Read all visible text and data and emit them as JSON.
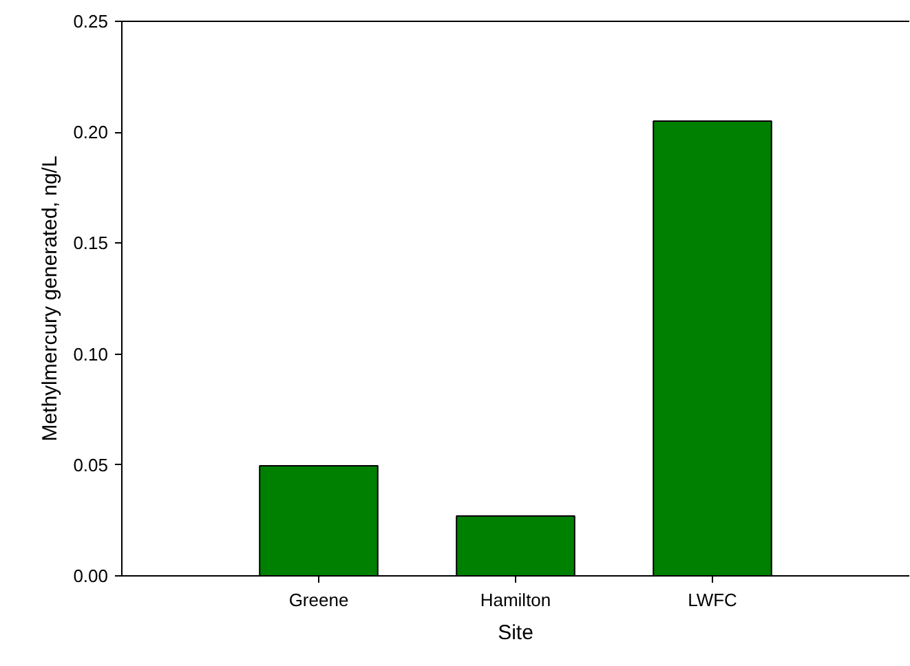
{
  "chart_data": {
    "type": "bar",
    "xlabel": "Site",
    "ylabel": "Methylmercury generated, ng/L",
    "categories": [
      "Greene",
      "Hamilton",
      "LWFC"
    ],
    "values": [
      0.0496,
      0.027,
      0.205
    ],
    "color": "#008000",
    "ylim": [
      0,
      0.25
    ],
    "yticks": [
      {
        "value": 0,
        "label": "0.00"
      },
      {
        "value": 0.05,
        "label": "0.05"
      },
      {
        "value": 0.1,
        "label": "0.10"
      },
      {
        "value": 0.15,
        "label": "0.15"
      },
      {
        "value": 0.2,
        "label": "0.20"
      },
      {
        "value": 0.25,
        "label": "0.25"
      }
    ],
    "grid": false
  }
}
